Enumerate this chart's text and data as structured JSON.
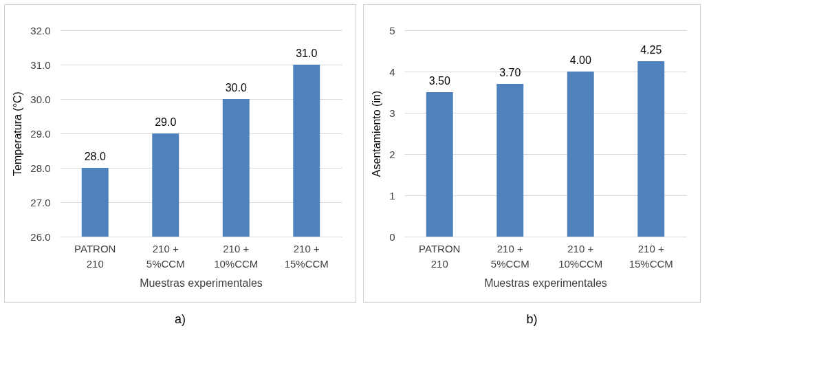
{
  "chart_data": [
    {
      "type": "bar",
      "xlabel": "Muestras experimentales",
      "ylabel": "Temperatura (°C)",
      "categories": [
        "PATRON 210",
        "210 + 5%CCM",
        "210 + 10%CCM",
        "210 + 15%CCM"
      ],
      "values": [
        28,
        29,
        30,
        31
      ],
      "color": "#4f81bd",
      "value_labels": [
        "28.0",
        "29.0",
        "30.0",
        "31.0"
      ],
      "ylim": [
        26,
        32
      ],
      "yticks": [
        {
          "value": 26,
          "label": "26.0"
        },
        {
          "value": 27,
          "label": "27.0"
        },
        {
          "value": 28,
          "label": "28.0"
        },
        {
          "value": 29,
          "label": "29.0"
        },
        {
          "value": 30,
          "label": "30.0"
        },
        {
          "value": 31,
          "label": "31.0"
        },
        {
          "value": 32,
          "label": "32.0"
        }
      ],
      "grid": "y",
      "annotations": [
        "a)"
      ]
    },
    {
      "type": "bar",
      "xlabel": "Muestras experimentales",
      "ylabel": "Asentamiento (in)",
      "categories": [
        "PATRON 210",
        "210 + 5%CCM",
        "210 + 10%CCM",
        "210 + 15%CCM"
      ],
      "values": [
        3.5,
        3.7,
        4,
        4.25
      ],
      "color": "#4f81bd",
      "value_labels": [
        "3.50",
        "3.70",
        "4.00",
        "4.25"
      ],
      "ylim": [
        0,
        5
      ],
      "yticks": [
        0,
        1,
        2,
        3,
        4,
        5
      ],
      "grid": "y",
      "annotations": [
        "b)"
      ]
    }
  ]
}
